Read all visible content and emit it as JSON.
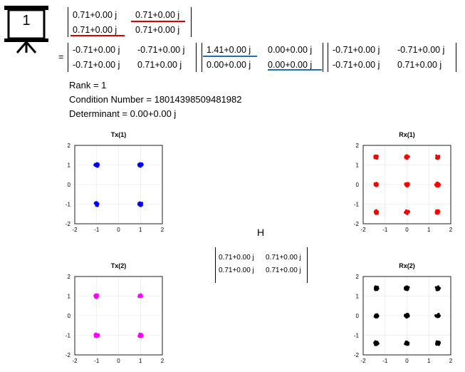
{
  "slide_badge": {
    "number": "1",
    "icon": "presentation-board-icon"
  },
  "svd": {
    "equals": "=",
    "H": [
      [
        "0.71+0.00 j",
        "0.71+0.00 j"
      ],
      [
        "0.71+0.00 j",
        "0.71+0.00 j"
      ]
    ],
    "U": [
      [
        "-0.71+0.00 j",
        "-0.71+0.00 j"
      ],
      [
        "-0.71+0.00 j",
        "0.71+0.00 j"
      ]
    ],
    "S": [
      [
        "1.41+0.00 j",
        "0.00+0.00 j"
      ],
      [
        "0.00+0.00 j",
        "0.00+0.00 j"
      ]
    ],
    "V": [
      [
        "-0.71+0.00 j",
        "-0.71+0.00 j"
      ],
      [
        "-0.71+0.00 j",
        "0.71+0.00 j"
      ]
    ]
  },
  "info": {
    "rank": "Rank = 1",
    "condition": "Condition Number = 18014398509481982",
    "determinant": "Determinant = 0.00+0.00 j"
  },
  "channel": {
    "label": "H",
    "matrix": [
      [
        "0.71+0.00 j",
        "0.71+0.00 j"
      ],
      [
        "0.71+0.00 j",
        "0.71+0.00 j"
      ]
    ]
  },
  "colors": {
    "red": "#dd0000",
    "blue": "#1f6fb5",
    "tx1": "#0000ff",
    "rx1": "#ff0000",
    "tx2": "#ff00ff",
    "rx2": "#000000"
  },
  "chart_data": [
    {
      "type": "scatter",
      "title": "Tx(1)",
      "xlim": [
        -2,
        2
      ],
      "ylim": [
        -2,
        2
      ],
      "xticks": [
        -2,
        -1,
        0,
        1,
        2
      ],
      "yticks": [
        -2,
        -1,
        0,
        1,
        2
      ],
      "color": "#0000ff",
      "points": [
        [
          -1,
          1
        ],
        [
          1,
          1
        ],
        [
          -1,
          -1
        ],
        [
          1,
          -1
        ]
      ]
    },
    {
      "type": "scatter",
      "title": "Rx(1)",
      "xlim": [
        -2,
        2
      ],
      "ylim": [
        -2,
        2
      ],
      "xticks": [
        -2,
        -1,
        0,
        1,
        2
      ],
      "yticks": [
        -2,
        -1,
        0,
        1,
        2
      ],
      "color": "#ff0000",
      "points": [
        [
          -1.4,
          1.4
        ],
        [
          0,
          1.4
        ],
        [
          1.4,
          1.4
        ],
        [
          -1.4,
          0
        ],
        [
          0,
          0
        ],
        [
          1.4,
          0
        ],
        [
          -1.4,
          -1.4
        ],
        [
          0,
          -1.4
        ],
        [
          1.4,
          -1.4
        ]
      ]
    },
    {
      "type": "scatter",
      "title": "Tx(2)",
      "xlim": [
        -2,
        2
      ],
      "ylim": [
        -2,
        2
      ],
      "xticks": [
        -2,
        -1,
        0,
        1,
        2
      ],
      "yticks": [
        -2,
        -1,
        0,
        1,
        2
      ],
      "color": "#ff00ff",
      "points": [
        [
          -1,
          1
        ],
        [
          1,
          1
        ],
        [
          -1,
          -1
        ],
        [
          1,
          -1
        ]
      ]
    },
    {
      "type": "scatter",
      "title": "Rx(2)",
      "xlim": [
        -2,
        2
      ],
      "ylim": [
        -2,
        2
      ],
      "xticks": [
        -2,
        -1,
        0,
        1,
        2
      ],
      "yticks": [
        -2,
        -1,
        0,
        1,
        2
      ],
      "color": "#000000",
      "points": [
        [
          -1.4,
          1.4
        ],
        [
          0,
          1.4
        ],
        [
          1.4,
          1.4
        ],
        [
          -1.4,
          0
        ],
        [
          0,
          0
        ],
        [
          1.4,
          0
        ],
        [
          -1.4,
          -1.4
        ],
        [
          0,
          -1.4
        ],
        [
          1.4,
          -1.4
        ]
      ]
    }
  ]
}
